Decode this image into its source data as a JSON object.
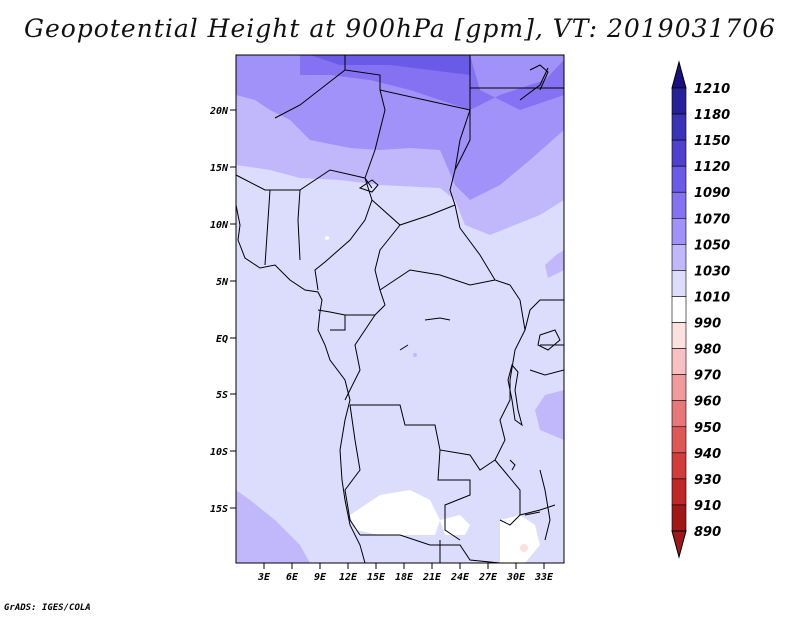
{
  "title": "Geopotential Height at 900hPa [gpm], VT: 2019031706",
  "credit": "GrADS: IGES/COLA",
  "map": {
    "lat_labels": [
      "20N",
      "15N",
      "10N",
      "5N",
      "EQ",
      "5S",
      "10S",
      "15S"
    ],
    "lon_labels": [
      "3E",
      "6E",
      "9E",
      "12E",
      "15E",
      "18E",
      "21E",
      "24E",
      "27E",
      "30E",
      "33E"
    ],
    "extent": {
      "lon": [
        0,
        35
      ],
      "lat": [
        -20,
        25
      ]
    }
  },
  "colorbar": {
    "levels": [
      "1210",
      "1180",
      "1150",
      "1120",
      "1090",
      "1070",
      "1050",
      "1030",
      "1010",
      "990",
      "980",
      "970",
      "960",
      "950",
      "940",
      "930",
      "910",
      "890"
    ],
    "colors": [
      "#1a1080",
      "#27209a",
      "#3a33b8",
      "#5040d0",
      "#6a5ae8",
      "#8472f2",
      "#a092f8",
      "#c0b8fb",
      "#dcdcfd",
      "#ffffff",
      "#fde0e0",
      "#f8c0c0",
      "#f19a9a",
      "#e87878",
      "#de5858",
      "#d23c3c",
      "#c02828",
      "#a01818"
    ]
  }
}
